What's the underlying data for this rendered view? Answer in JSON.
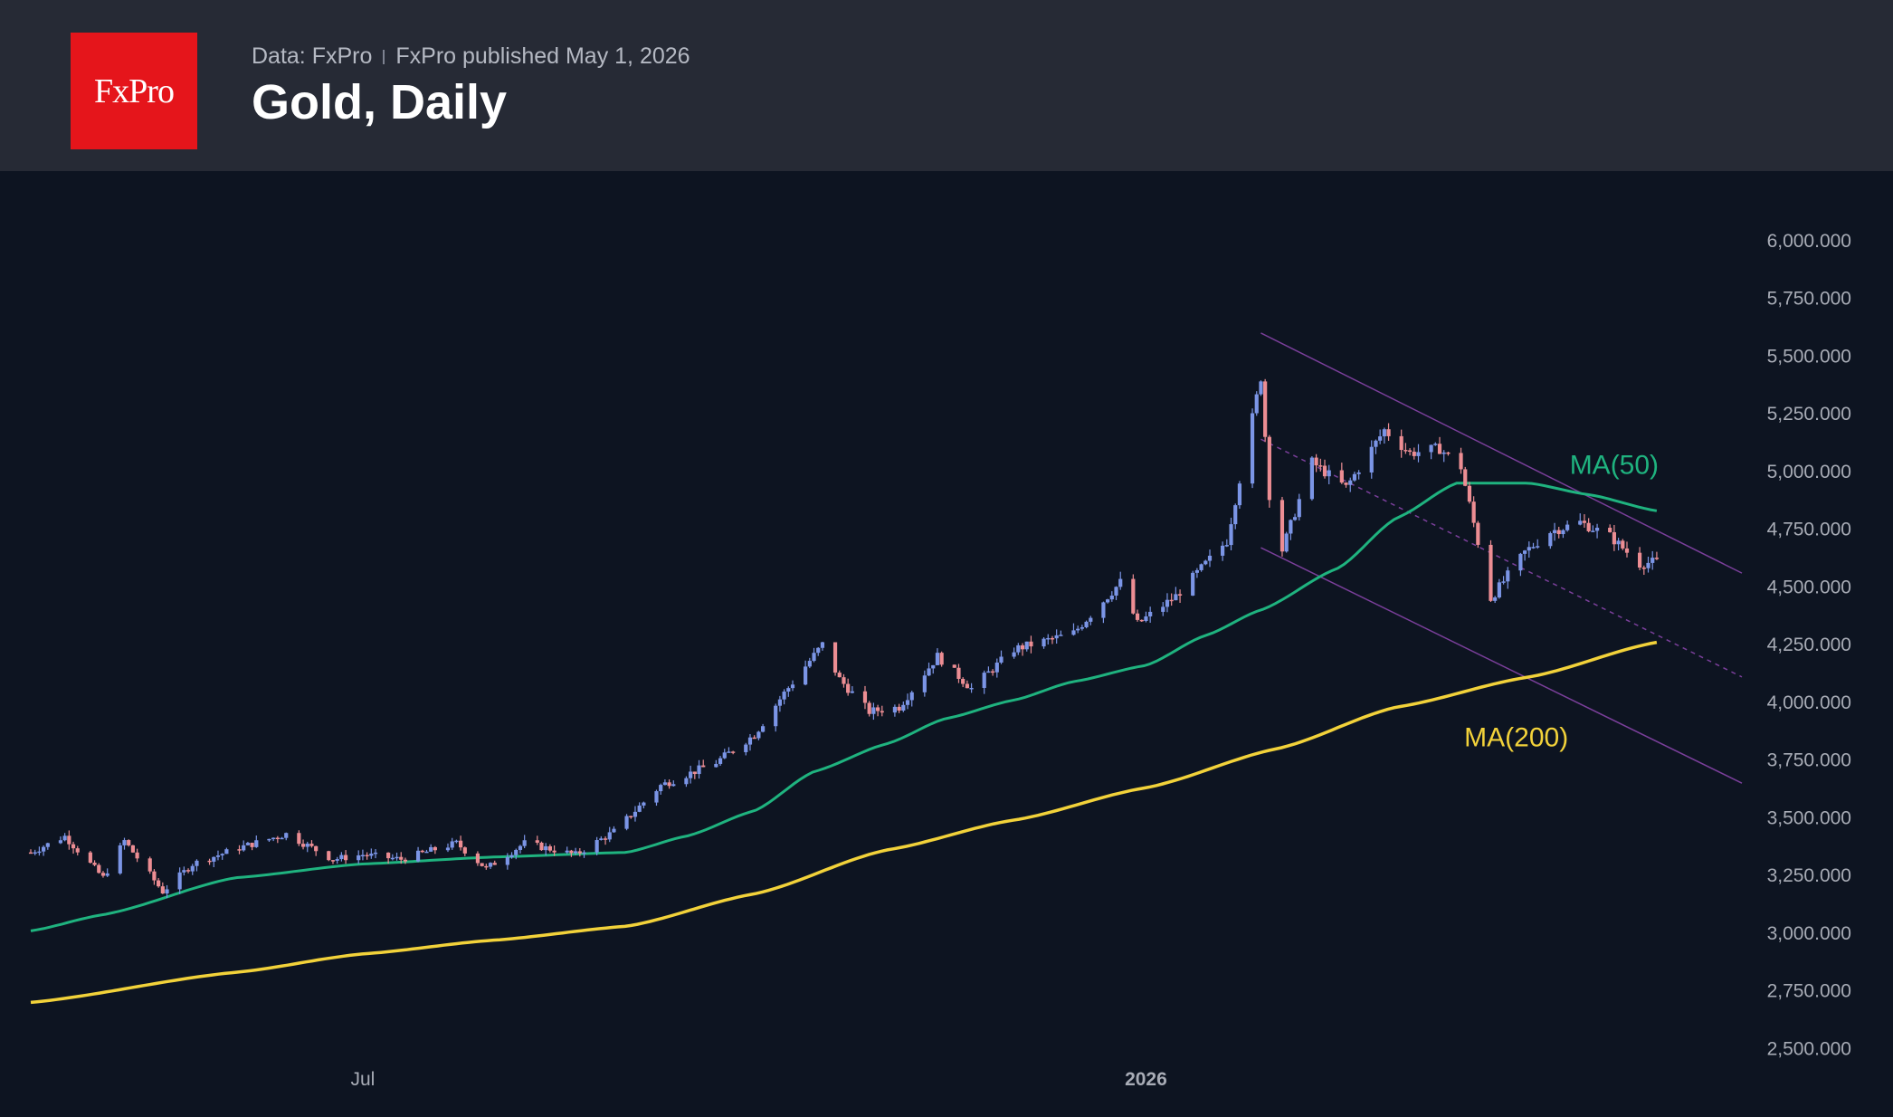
{
  "header": {
    "logo_text": "FxPro",
    "source": "Data: FxPro",
    "published": "FxPro published May 1, 2026",
    "title": "Gold, Daily"
  },
  "colors": {
    "background": "#0d1421",
    "header": "#262a35",
    "up": "#7b95e6",
    "down": "#ec8d93",
    "ma50": "#1fb37f",
    "ma200": "#f2d23a",
    "channel": "#7a3f9a",
    "brand": "#e5151b"
  },
  "chart_data": {
    "type": "candlestick",
    "instrument": "Gold",
    "timeframe": "Daily",
    "ylim": [
      2380,
      6090
    ],
    "y_ticks": [
      2500,
      2750,
      3000,
      3250,
      3500,
      3750,
      4000,
      4250,
      4500,
      4750,
      5000,
      5250,
      5500,
      5750,
      6000
    ],
    "y_tick_labels": [
      "2,500.000",
      "2,750.000",
      "3,000.000",
      "3,250.000",
      "3,500.000",
      "3,750.000",
      "4,000.000",
      "4,250.000",
      "4,500.000",
      "4,750.000",
      "5,000.000",
      "5,250.000",
      "5,500.000",
      "5,750.000",
      "6,000.000"
    ],
    "x_range": [
      "2025-04-14",
      "2026-05-21"
    ],
    "x_ticks": [
      {
        "date": "2025-07-01",
        "label": "Jul",
        "bold": false
      },
      {
        "date": "2026-01-01",
        "label": "2026",
        "bold": true
      }
    ],
    "keypoints": [
      [
        "2025-04-14",
        3350
      ],
      [
        "2025-04-22",
        3420
      ],
      [
        "2025-05-01",
        3240
      ],
      [
        "2025-05-06",
        3400
      ],
      [
        "2025-05-15",
        3180
      ],
      [
        "2025-05-22",
        3300
      ],
      [
        "2025-06-02",
        3370
      ],
      [
        "2025-06-13",
        3430
      ],
      [
        "2025-06-24",
        3320
      ],
      [
        "2025-07-01",
        3340
      ],
      [
        "2025-07-10",
        3320
      ],
      [
        "2025-07-23",
        3390
      ],
      [
        "2025-07-30",
        3280
      ],
      [
        "2025-08-08",
        3390
      ],
      [
        "2025-08-20",
        3340
      ],
      [
        "2025-08-29",
        3440
      ],
      [
        "2025-09-09",
        3640
      ],
      [
        "2025-09-22",
        3740
      ],
      [
        "2025-10-01",
        3860
      ],
      [
        "2025-10-08",
        4040
      ],
      [
        "2025-10-17",
        4250
      ],
      [
        "2025-10-21",
        4100
      ],
      [
        "2025-10-28",
        3960
      ],
      [
        "2025-11-04",
        3980
      ],
      [
        "2025-11-13",
        4200
      ],
      [
        "2025-11-21",
        4060
      ],
      [
        "2025-12-01",
        4230
      ],
      [
        "2025-12-15",
        4300
      ],
      [
        "2025-12-26",
        4520
      ],
      [
        "2025-12-30",
        4340
      ],
      [
        "2026-01-08",
        4460
      ],
      [
        "2026-01-20",
        4700
      ],
      [
        "2026-01-28",
        5410
      ],
      [
        "2026-01-30",
        4900
      ],
      [
        "2026-02-02",
        4660
      ],
      [
        "2026-02-09",
        5040
      ],
      [
        "2026-02-17",
        4930
      ],
      [
        "2026-02-26",
        5180
      ],
      [
        "2026-03-04",
        5080
      ],
      [
        "2026-03-11",
        5100
      ],
      [
        "2026-03-16",
        5020
      ],
      [
        "2026-03-23",
        4450
      ],
      [
        "2026-03-31",
        4650
      ],
      [
        "2026-04-06",
        4740
      ],
      [
        "2026-04-13",
        4780
      ],
      [
        "2026-04-20",
        4720
      ],
      [
        "2026-04-27",
        4600
      ],
      [
        "2026-05-01",
        4610
      ]
    ],
    "series": [
      {
        "name": "MA(50)",
        "points": [
          [
            "2025-04-14",
            3010
          ],
          [
            "2025-05-01",
            3080
          ],
          [
            "2025-06-01",
            3240
          ],
          [
            "2025-07-01",
            3300
          ],
          [
            "2025-08-01",
            3330
          ],
          [
            "2025-09-01",
            3350
          ],
          [
            "2025-09-15",
            3420
          ],
          [
            "2025-10-01",
            3530
          ],
          [
            "2025-10-15",
            3700
          ],
          [
            "2025-11-01",
            3820
          ],
          [
            "2025-11-15",
            3930
          ],
          [
            "2025-12-01",
            4010
          ],
          [
            "2025-12-15",
            4090
          ],
          [
            "2026-01-01",
            4160
          ],
          [
            "2026-01-15",
            4290
          ],
          [
            "2026-01-28",
            4400
          ],
          [
            "2026-02-15",
            4580
          ],
          [
            "2026-03-01",
            4800
          ],
          [
            "2026-03-15",
            4950
          ],
          [
            "2026-04-01",
            4950
          ],
          [
            "2026-04-15",
            4900
          ],
          [
            "2026-05-01",
            4830
          ]
        ]
      },
      {
        "name": "MA(200)",
        "points": [
          [
            "2025-04-14",
            2700
          ],
          [
            "2025-06-01",
            2830
          ],
          [
            "2025-07-01",
            2910
          ],
          [
            "2025-08-01",
            2970
          ],
          [
            "2025-09-01",
            3030
          ],
          [
            "2025-10-01",
            3170
          ],
          [
            "2025-11-01",
            3360
          ],
          [
            "2025-12-01",
            3490
          ],
          [
            "2026-01-01",
            3630
          ],
          [
            "2026-02-01",
            3800
          ],
          [
            "2026-03-01",
            3980
          ],
          [
            "2026-04-01",
            4110
          ],
          [
            "2026-05-01",
            4260
          ]
        ]
      }
    ],
    "channel": {
      "upper": [
        [
          "2026-01-28",
          5600
        ],
        [
          "2026-05-21",
          4560
        ]
      ],
      "middle": [
        [
          "2026-01-28",
          5140
        ],
        [
          "2026-05-21",
          4110
        ]
      ],
      "lower": [
        [
          "2026-01-28",
          4670
        ],
        [
          "2026-05-21",
          3650
        ]
      ]
    },
    "annotations": [
      {
        "text": "MA(50)",
        "series": "MA(50)",
        "date": "2026-04-21",
        "value": 4990
      },
      {
        "text": "MA(200)",
        "series": "MA(200)",
        "date": "2026-03-29",
        "value": 3810
      }
    ]
  }
}
